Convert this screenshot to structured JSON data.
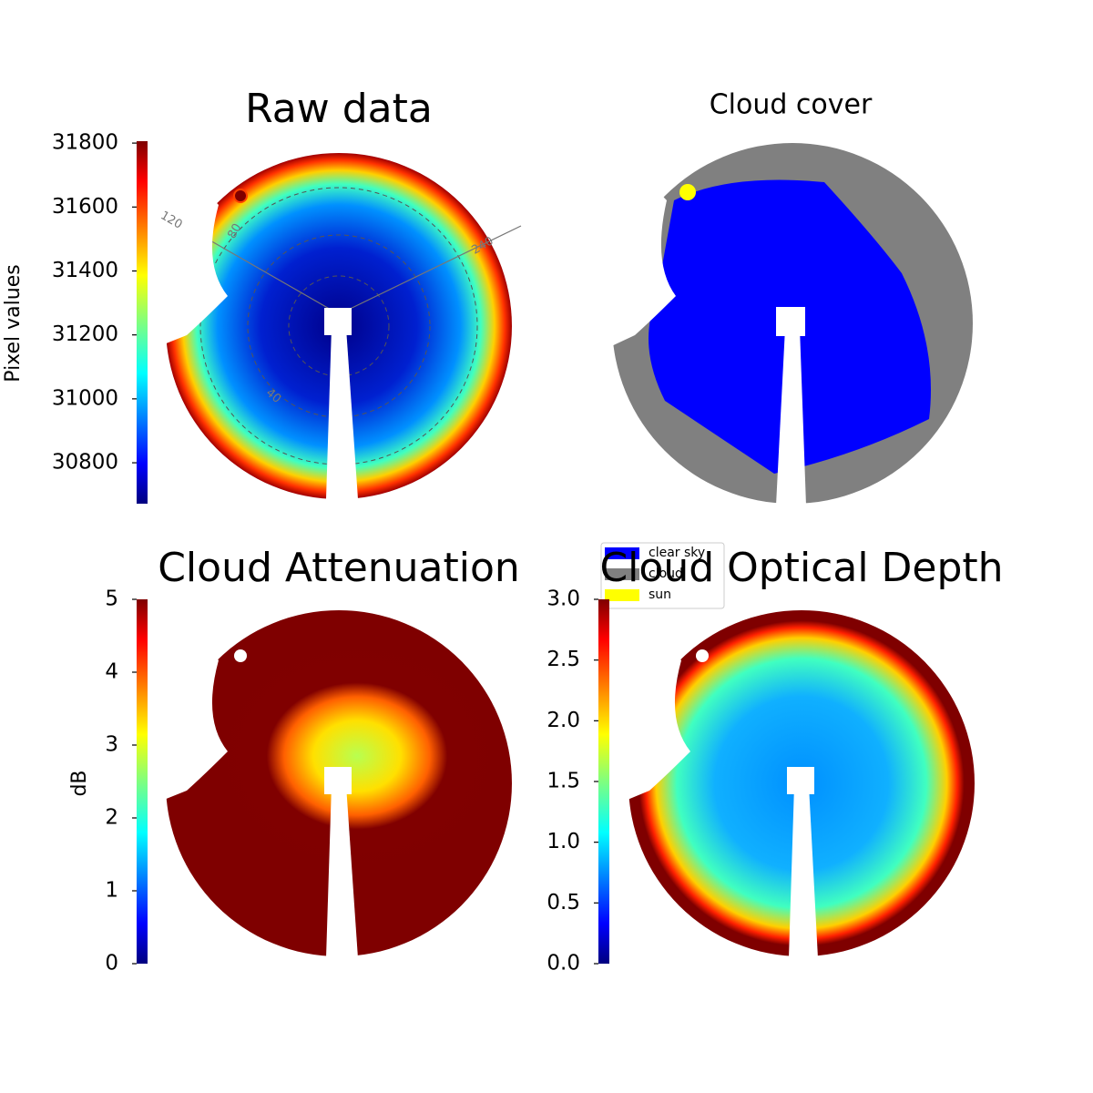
{
  "chart_data": [
    {
      "type": "image",
      "title": "Raw data",
      "colorbar_label": "Pixel values",
      "colormap": "jet",
      "ylim": [
        30672,
        31806
      ],
      "yticks": [
        30800,
        31000,
        31200,
        31400,
        31600,
        31800
      ],
      "annotations": [
        "120",
        "80",
        "240",
        "40"
      ]
    },
    {
      "type": "image",
      "title": "Cloud cover",
      "legend": "lower left",
      "series": [
        {
          "name": "clear sky",
          "color": "#0000ff"
        },
        {
          "name": "cloud",
          "color": "#808080"
        },
        {
          "name": "sun",
          "color": "#ffff00"
        }
      ]
    },
    {
      "type": "image",
      "title": "Cloud Attenuation",
      "colorbar_label": "dB",
      "colormap": "jet",
      "ylim": [
        0,
        5
      ],
      "yticks": [
        0,
        1,
        2,
        3,
        4,
        5
      ]
    },
    {
      "type": "image",
      "title": "Cloud Optical Depth",
      "colormap": "jet",
      "ylim": [
        0,
        3
      ],
      "yticks": [
        {
          "value": 0,
          "label": "0.0"
        },
        0.5,
        {
          "value": 1,
          "label": "1.0"
        },
        1.5,
        {
          "value": 2,
          "label": "2.0"
        },
        2.5,
        {
          "value": 3,
          "label": "3.0"
        }
      ]
    }
  ]
}
